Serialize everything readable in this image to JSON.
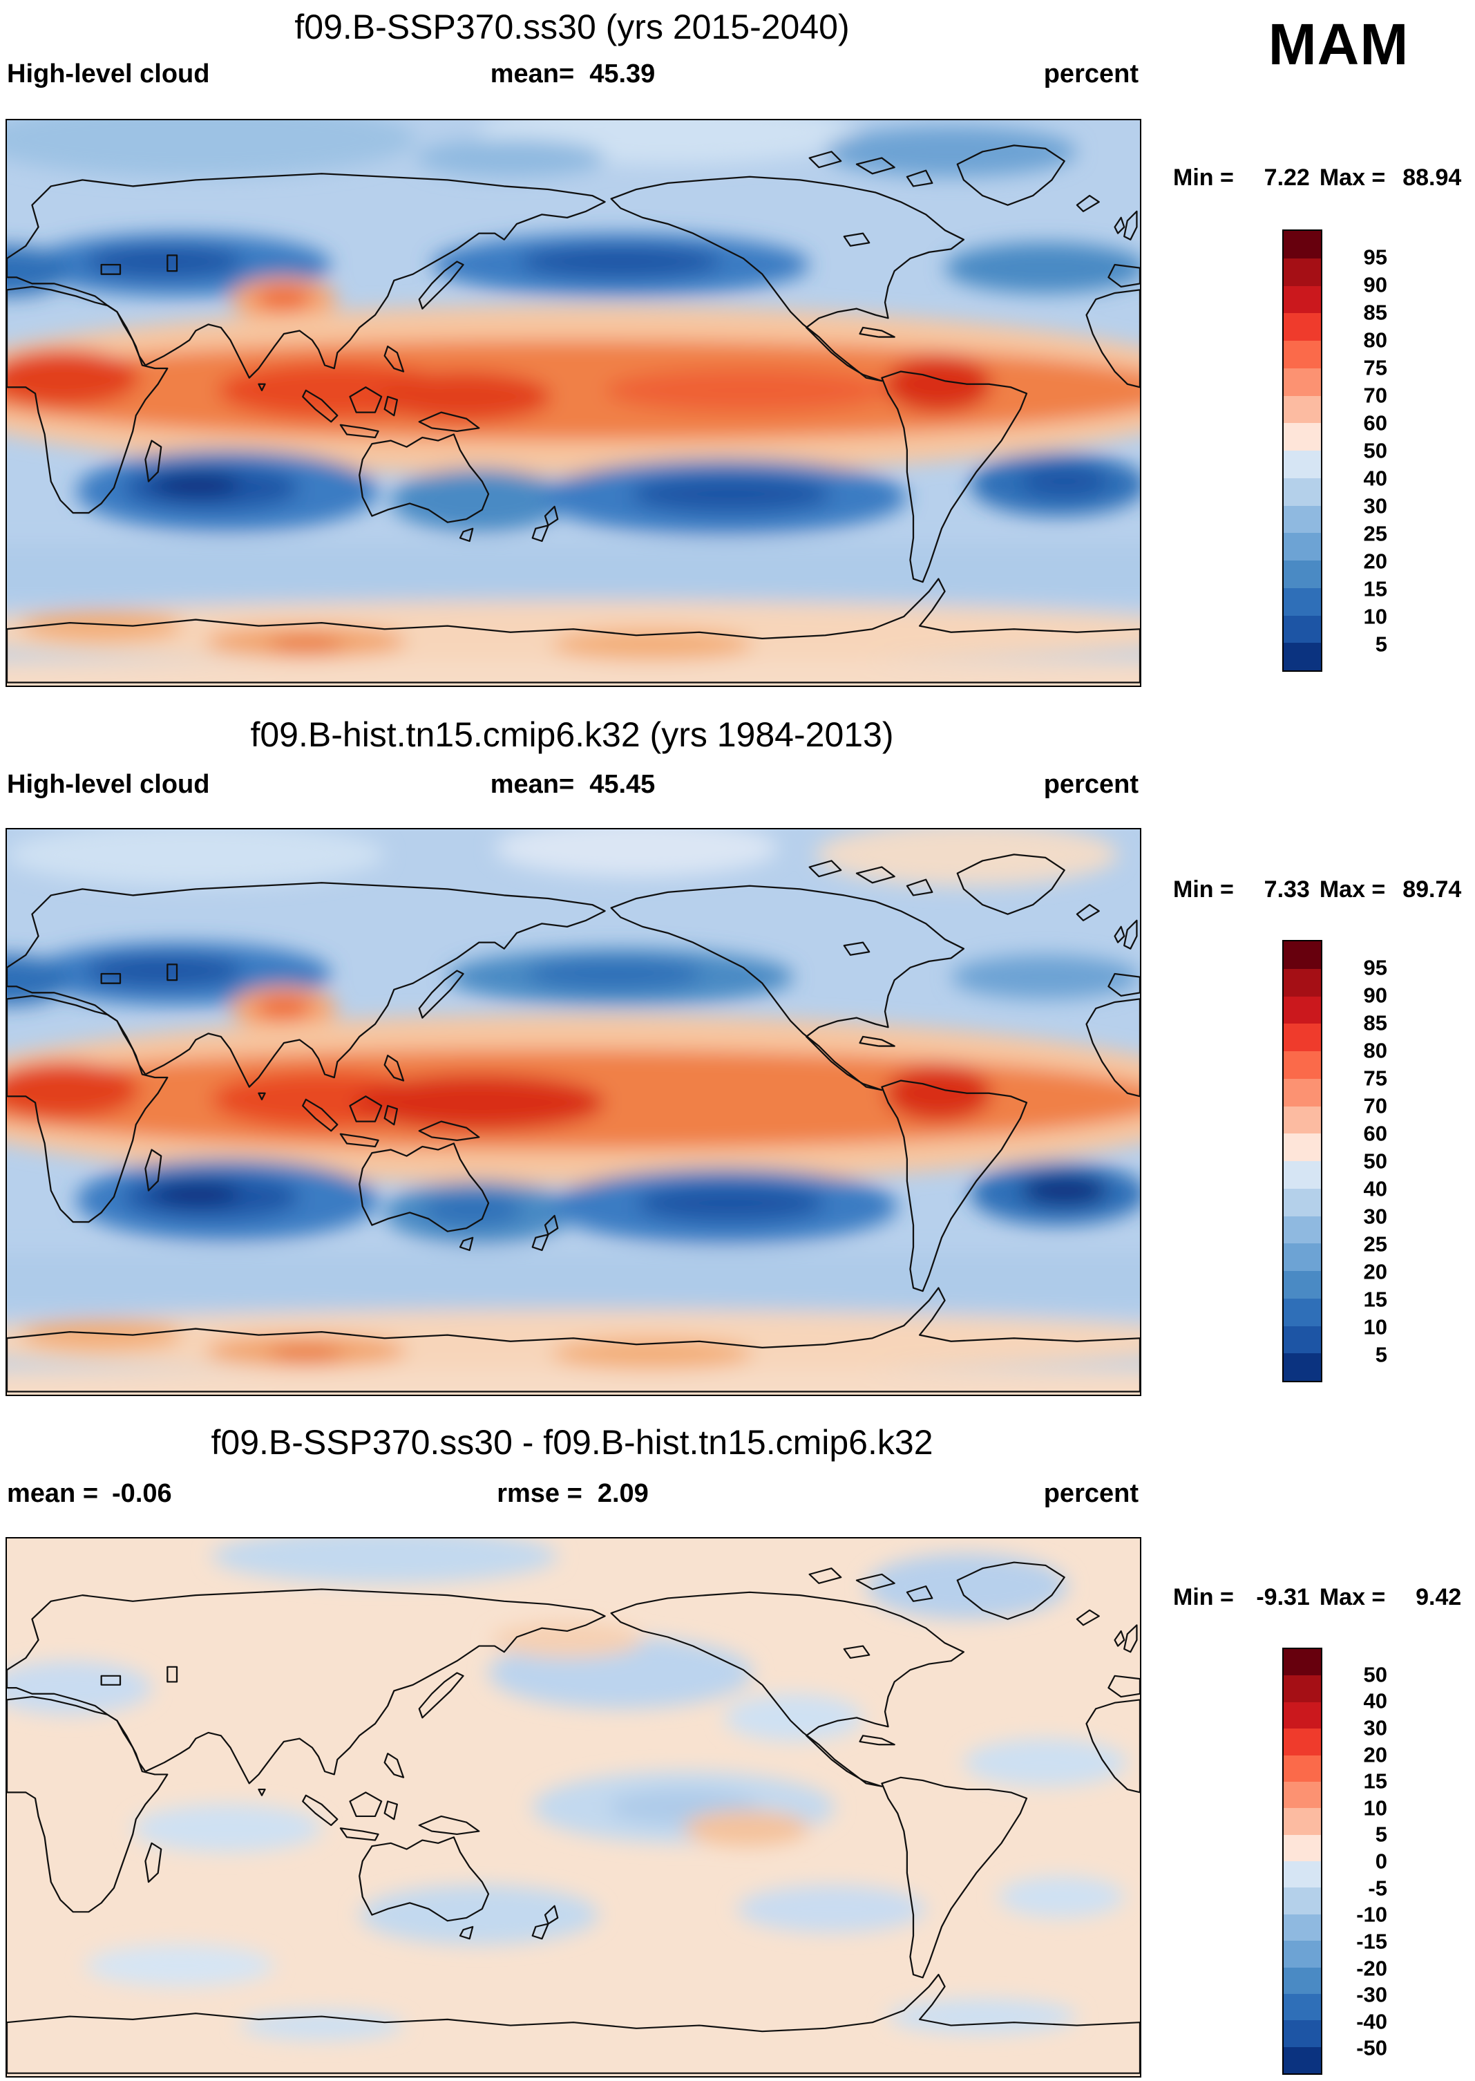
{
  "season": "MAM",
  "panels": [
    {
      "title": "f09.B-SSP370.ss30 (yrs 2015-2040)",
      "variable": "High-level cloud",
      "mean_label": "mean=",
      "mean_value": "45.39",
      "units": "percent",
      "min_label": "Min =",
      "min_value": "7.22",
      "max_label": "Max =",
      "max_value": "88.94"
    },
    {
      "title": "f09.B-hist.tn15.cmip6.k32 (yrs 1984-2013)",
      "variable": "High-level cloud",
      "mean_label": "mean=",
      "mean_value": "45.45",
      "units": "percent",
      "min_label": "Min =",
      "min_value": "7.33",
      "max_label": "Max =",
      "max_value": "89.74"
    },
    {
      "title": "f09.B-SSP370.ss30 - f09.B-hist.tn15.cmip6.k32",
      "mean_label": "mean =",
      "mean_value": "-0.06",
      "rmse_label": "rmse =",
      "rmse_value": "2.09",
      "units": "percent",
      "min_label": "Min =",
      "min_value": "-9.31",
      "max_label": "Max =",
      "max_value": "9.42"
    }
  ],
  "colorbars": {
    "cloud": {
      "ticks": [
        "95",
        "90",
        "85",
        "80",
        "75",
        "70",
        "60",
        "50",
        "40",
        "30",
        "25",
        "20",
        "15",
        "10",
        "5"
      ],
      "colors": [
        "#67000d",
        "#a50f15",
        "#cb181d",
        "#ef3b2c",
        "#fb6a4a",
        "#fc9272",
        "#fcbba1",
        "#fee5d9",
        "#d6e5f4",
        "#b4d0ea",
        "#8fb9e0",
        "#6da3d4",
        "#4a8ac4",
        "#2f6fb8",
        "#1d55a5",
        "#0b3380"
      ]
    },
    "diff": {
      "ticks": [
        "50",
        "40",
        "30",
        "20",
        "15",
        "10",
        "5",
        "0",
        "-5",
        "-10",
        "-15",
        "-20",
        "-30",
        "-40",
        "-50"
      ],
      "colors": [
        "#67000d",
        "#a50f15",
        "#cb181d",
        "#ef3b2c",
        "#fb6a4a",
        "#fc9272",
        "#fcbba1",
        "#fee5d9",
        "#d6e5f4",
        "#b4d0ea",
        "#8fb9e0",
        "#6da3d4",
        "#4a8ac4",
        "#2f6fb8",
        "#1d55a5",
        "#0b3380"
      ]
    }
  },
  "chart_data": [
    {
      "type": "heatmap",
      "kind": "global-filled-contour-map",
      "title": "f09.B-SSP370.ss30 (yrs 2015-2040)",
      "variable": "High-level cloud",
      "season": "MAM",
      "units": "percent",
      "mean": 45.39,
      "min": 7.22,
      "max": 88.94,
      "contour_levels": [
        5,
        10,
        15,
        20,
        25,
        30,
        40,
        50,
        60,
        70,
        75,
        80,
        85,
        90,
        95
      ],
      "lon_range": [
        0,
        360
      ],
      "lat_range": [
        -90,
        90
      ],
      "summary": "High cloud maxima (70-90%) along the tropical convergence zones over equatorial Africa, the Indo-Pacific warm pool and northern South America; minima (10-25%) in the subtropical subsidence belts of both hemispheres; 50-60% band around the Antarctic coast."
    },
    {
      "type": "heatmap",
      "kind": "global-filled-contour-map",
      "title": "f09.B-hist.tn15.cmip6.k32 (yrs 1984-2013)",
      "variable": "High-level cloud",
      "season": "MAM",
      "units": "percent",
      "mean": 45.45,
      "min": 7.33,
      "max": 89.74,
      "contour_levels": [
        5,
        10,
        15,
        20,
        25,
        30,
        40,
        50,
        60,
        70,
        75,
        80,
        85,
        90,
        95
      ],
      "lon_range": [
        0,
        360
      ],
      "lat_range": [
        -90,
        90
      ],
      "summary": "Very similar climatology to the SSP370 run: tropical maxima over Africa, the warm pool and South America, subtropical minima, pale warm band near Antarctica and over the Arctic."
    },
    {
      "type": "heatmap",
      "kind": "global-filled-contour-difference-map",
      "title": "f09.B-SSP370.ss30 - f09.B-hist.tn15.cmip6.k32",
      "variable": "High-level cloud difference",
      "season": "MAM",
      "units": "percent",
      "mean": -0.06,
      "rmse": 2.09,
      "min": -9.31,
      "max": 9.42,
      "contour_levels": [
        -50,
        -40,
        -30,
        -20,
        -15,
        -10,
        -5,
        0,
        5,
        10,
        15,
        20,
        30,
        40,
        50
      ],
      "lon_range": [
        0,
        360
      ],
      "lat_range": [
        -90,
        90
      ],
      "summary": "Differences mostly within ±5%: weak negative anomalies over the North Pacific, central equatorial Pacific, northeastern Canada/Greenland and south of Australia; weak positive anomalies elsewhere."
    }
  ]
}
